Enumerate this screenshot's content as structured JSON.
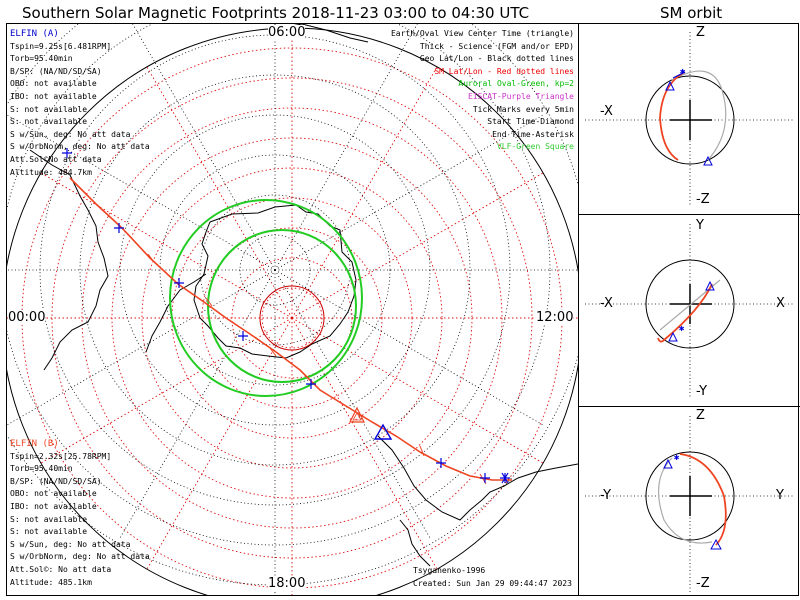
{
  "title": "Southern Solar Magnetic Footprints 2018-11-23 03:00 to 04:30 UTC",
  "orbit_title": "SM orbit",
  "map": {
    "mlt_labels": {
      "top": "06:00",
      "left": "00:00",
      "right": "12:00",
      "bottom": "18:00"
    }
  },
  "elfin_a": {
    "name": "ELFIN (A)",
    "color": "#0000cc",
    "lines": [
      "Tspin=9.25s[6.481RPM]",
      "Torb=95.40min",
      "B/SP: (NA/ND/SD/SA)",
      "OBO: not available",
      "IBO: not available",
      "S: not available",
      "S: not available",
      "S w/Sun, deg: No att data",
      "S w/OrbNorm, deg: No att data",
      "Att.Sol©No att data",
      "Altitude: 484.7km"
    ]
  },
  "elfin_b": {
    "name": "ELFIN (B)",
    "color": "#ee4422",
    "lines": [
      "Tspin=2.32s[25.78RPM]",
      "Torb=95.40min",
      "B/SP: (NA/ND/SD/SA)",
      "OBO: not available",
      "IBO: not available",
      "S: not available",
      "S: not available",
      "S w/Sun, deg: No att data",
      "S w/OrbNorm, deg: No att data",
      "Att.Sol©: No att data",
      "Altitude: 485.1km"
    ]
  },
  "legend": [
    {
      "text": "Earth/Oval View Center Time (triangle)",
      "color": "#000000"
    },
    {
      "text": "Thick - Science (FGM and/or EPD)",
      "color": "#000000"
    },
    {
      "text": "Geo Lat/Lon - Black dotted lines",
      "color": "#000000"
    },
    {
      "text": "SM Lat/Lon - Red dotted lines",
      "color": "#ee0000"
    },
    {
      "text": "Auroral Oval-Green, kp=2",
      "color": "#00bb00"
    },
    {
      "text": "EISCAT-Purple Triangle",
      "color": "#cc33cc"
    },
    {
      "text": "Tick Marks every 5min",
      "color": "#000000"
    },
    {
      "text": "Start Time-Diamond",
      "color": "#000000"
    },
    {
      "text": "End Time-Asterisk",
      "color": "#000000"
    },
    {
      "text": "VLF-Green Square",
      "color": "#33cc33"
    }
  ],
  "credits": {
    "author": "Tsyganenko-1996",
    "created": "Created: Sun Jan 29 09:44:47 2023"
  },
  "orbit_panels": [
    {
      "name": "xz-panel",
      "top": "Z",
      "bottom": "-Z",
      "left": "-X",
      "right": ""
    },
    {
      "name": "xy-panel",
      "top": "Y",
      "bottom": "-Y",
      "left": "-X",
      "right": "X"
    },
    {
      "name": "yz-panel",
      "top": "Z",
      "bottom": "-Z",
      "left": "-Y",
      "right": "Y"
    }
  ]
}
